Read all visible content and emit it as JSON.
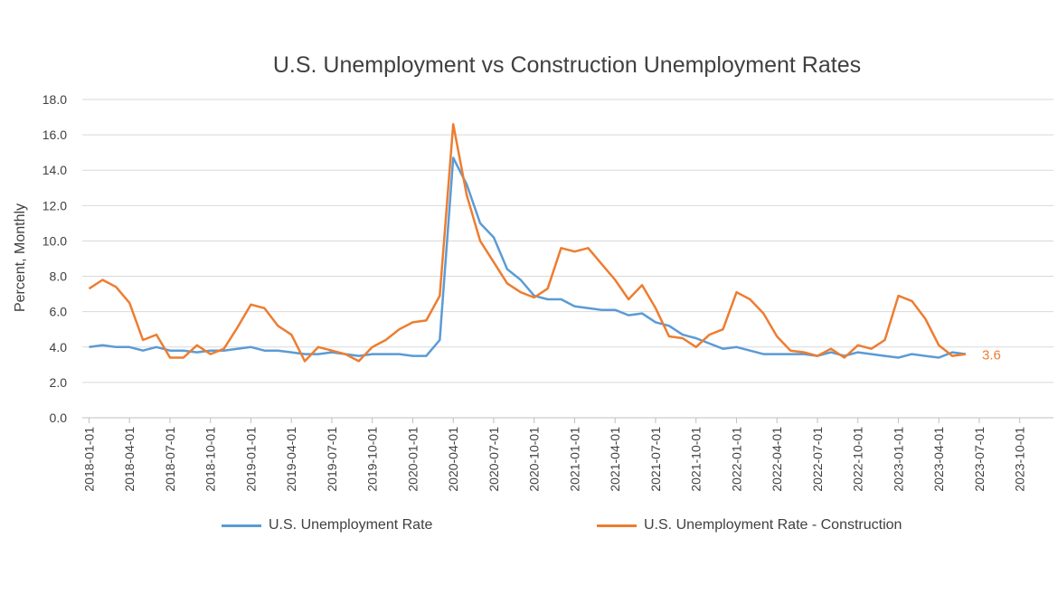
{
  "colors": {
    "series_0": "#5b9bd5",
    "series_1": "#ed7d31",
    "grid": "#d9d9d9",
    "axis": "#bfbfbf"
  },
  "chart_data": {
    "type": "line",
    "title": "U.S. Unemployment vs Construction Unemployment Rates",
    "ylabel": "Percent, Monthly",
    "xlabel": "",
    "ylim": [
      0,
      18
    ],
    "y_ticks": [
      "0.0",
      "2.0",
      "4.0",
      "6.0",
      "8.0",
      "10.0",
      "12.0",
      "14.0",
      "16.0",
      "18.0"
    ],
    "x_ticks": [
      "2018-01-01",
      "2018-04-01",
      "2018-07-01",
      "2018-10-01",
      "2019-01-01",
      "2019-04-01",
      "2019-07-01",
      "2019-10-01",
      "2020-01-01",
      "2020-04-01",
      "2020-07-01",
      "2020-10-01",
      "2021-01-01",
      "2021-04-01",
      "2021-07-01",
      "2021-10-01",
      "2022-01-01",
      "2022-04-01",
      "2022-07-01",
      "2022-10-01",
      "2023-01-01",
      "2023-04-01",
      "2023-07-01",
      "2023-10-01"
    ],
    "xlim": [
      "2018-01-01",
      "2023-12-01"
    ],
    "grid": true,
    "legend_position": "bottom",
    "x": [
      "2018-01-01",
      "2018-02-01",
      "2018-03-01",
      "2018-04-01",
      "2018-05-01",
      "2018-06-01",
      "2018-07-01",
      "2018-08-01",
      "2018-09-01",
      "2018-10-01",
      "2018-11-01",
      "2018-12-01",
      "2019-01-01",
      "2019-02-01",
      "2019-03-01",
      "2019-04-01",
      "2019-05-01",
      "2019-06-01",
      "2019-07-01",
      "2019-08-01",
      "2019-09-01",
      "2019-10-01",
      "2019-11-01",
      "2019-12-01",
      "2020-01-01",
      "2020-02-01",
      "2020-03-01",
      "2020-04-01",
      "2020-05-01",
      "2020-06-01",
      "2020-07-01",
      "2020-08-01",
      "2020-09-01",
      "2020-10-01",
      "2020-11-01",
      "2020-12-01",
      "2021-01-01",
      "2021-02-01",
      "2021-03-01",
      "2021-04-01",
      "2021-05-01",
      "2021-06-01",
      "2021-07-01",
      "2021-08-01",
      "2021-09-01",
      "2021-10-01",
      "2021-11-01",
      "2021-12-01",
      "2022-01-01",
      "2022-02-01",
      "2022-03-01",
      "2022-04-01",
      "2022-05-01",
      "2022-06-01",
      "2022-07-01",
      "2022-08-01",
      "2022-09-01",
      "2022-10-01",
      "2022-11-01",
      "2022-12-01",
      "2023-01-01",
      "2023-02-01",
      "2023-03-01",
      "2023-04-01",
      "2023-05-01",
      "2023-06-01"
    ],
    "series": [
      {
        "name": "U.S. Unemployment Rate",
        "color": "#5b9bd5",
        "values": [
          4.0,
          4.1,
          4.0,
          4.0,
          3.8,
          4.0,
          3.8,
          3.8,
          3.7,
          3.8,
          3.8,
          3.9,
          4.0,
          3.8,
          3.8,
          3.7,
          3.6,
          3.6,
          3.7,
          3.6,
          3.5,
          3.6,
          3.6,
          3.6,
          3.5,
          3.5,
          4.4,
          14.7,
          13.2,
          11.0,
          10.2,
          8.4,
          7.8,
          6.9,
          6.7,
          6.7,
          6.3,
          6.2,
          6.1,
          6.1,
          5.8,
          5.9,
          5.4,
          5.2,
          4.7,
          4.5,
          4.2,
          3.9,
          4.0,
          3.8,
          3.6,
          3.6,
          3.6,
          3.6,
          3.5,
          3.7,
          3.5,
          3.7,
          3.6,
          3.5,
          3.4,
          3.6,
          3.5,
          3.4,
          3.7,
          3.6
        ]
      },
      {
        "name": "U.S. Unemployment Rate - Construction",
        "color": "#ed7d31",
        "values": [
          7.3,
          7.8,
          7.4,
          6.5,
          4.4,
          4.7,
          3.4,
          3.4,
          4.1,
          3.6,
          3.9,
          5.1,
          6.4,
          6.2,
          5.2,
          4.7,
          3.2,
          4.0,
          3.8,
          3.6,
          3.2,
          4.0,
          4.4,
          5.0,
          5.4,
          5.5,
          6.9,
          16.6,
          12.6,
          10.0,
          8.8,
          7.6,
          7.1,
          6.8,
          7.3,
          9.6,
          9.4,
          9.6,
          8.7,
          7.8,
          6.7,
          7.5,
          6.2,
          4.6,
          4.5,
          4.0,
          4.7,
          5.0,
          7.1,
          6.7,
          5.9,
          4.6,
          3.8,
          3.7,
          3.5,
          3.9,
          3.4,
          4.1,
          3.9,
          4.4,
          6.9,
          6.6,
          5.6,
          4.1,
          3.5,
          3.6
        ]
      }
    ],
    "annotation": {
      "text": "3.6",
      "x": "2023-06-01",
      "y": 3.6,
      "series": "U.S. Unemployment Rate - Construction"
    }
  }
}
